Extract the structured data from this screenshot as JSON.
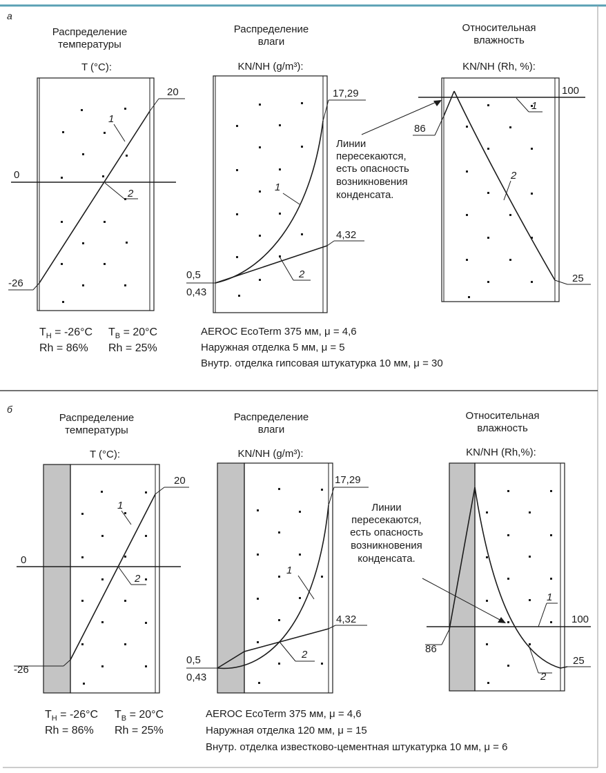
{
  "sections": [
    {
      "letter": "а",
      "panels": [
        {
          "title": [
            "Распределение",
            "температуры"
          ],
          "axis_label": "T (°C):",
          "labels": {
            "top": "20",
            "zero": "0",
            "bottom": "-26",
            "c1": "1",
            "c2": "2"
          }
        },
        {
          "title": [
            "Распределение",
            "влаги"
          ],
          "axis_label": "KN/NH (g/m³):",
          "labels": {
            "top": "17,29",
            "mid": "4,32",
            "low_upper": "0,5",
            "low_lower": "0,43",
            "c1": "1",
            "c2": "2"
          }
        },
        {
          "title": [
            "Относительная",
            "влажность"
          ],
          "axis_label": "KN/NH (Rh, %):",
          "labels": {
            "top": "100",
            "left": "86",
            "right": "25",
            "c1": "1",
            "c2": "2"
          }
        }
      ],
      "note": [
        "Линии",
        "пересекаются,",
        "есть опасность",
        "возникновения",
        "конденсата."
      ],
      "conditions": {
        "t_outer": "T",
        "t_outer_sub": "H",
        "t_outer_val": " = -26°C",
        "t_inner": "T",
        "t_inner_sub": "B",
        "t_inner_val": " = 20°C",
        "rh_outer": "Rh = 86%",
        "rh_inner": "Rh = 25%"
      },
      "materials": [
        "AEROC EcoTerm 375 мм, μ = 4,6",
        "Наружная отделка 5 мм, μ = 5",
        "Внутр. отделка гипсовая штукатурка 10 мм, μ = 30"
      ]
    },
    {
      "letter": "б",
      "panels": [
        {
          "title": [
            "Распределение",
            "температуры"
          ],
          "axis_label": "T (°C):",
          "labels": {
            "top": "20",
            "zero": "0",
            "bottom": "-26",
            "c1": "1",
            "c2": "2"
          }
        },
        {
          "title": [
            "Распределение",
            "влаги"
          ],
          "axis_label": "KN/NH (g/m³):",
          "labels": {
            "top": "17,29",
            "mid": "4,32",
            "low_upper": "0,5",
            "low_lower": "0,43",
            "c1": "1",
            "c2": "2"
          }
        },
        {
          "title": [
            "Относительная",
            "влажность"
          ],
          "axis_label": "KN/NH (Rh,%):",
          "labels": {
            "top": "100",
            "left": "86",
            "right": "25",
            "c1": "1",
            "c2": "2"
          }
        }
      ],
      "note": [
        "Линии",
        "пересекаются,",
        "есть опасность",
        "возникновения",
        "конденсата."
      ],
      "conditions": {
        "t_outer": "T",
        "t_outer_sub": "H",
        "t_outer_val": " = -26°C",
        "t_inner": "T",
        "t_inner_sub": "B",
        "t_inner_val": " = 20°C",
        "rh_outer": "Rh = 86%",
        "rh_inner": "Rh = 25%"
      },
      "materials": [
        "AEROC EcoTerm 375 мм, μ = 4,6",
        "Наружная отделка 120 мм, μ = 15",
        "Внутр. отделка известково-цементная штукатурка 10 мм, μ = 6"
      ]
    }
  ],
  "colors": {
    "ink": "#1c1c1c",
    "hatch": "#c4c4c4",
    "frame": "#9a9a9a",
    "accent_line": "#5aa0b4"
  }
}
